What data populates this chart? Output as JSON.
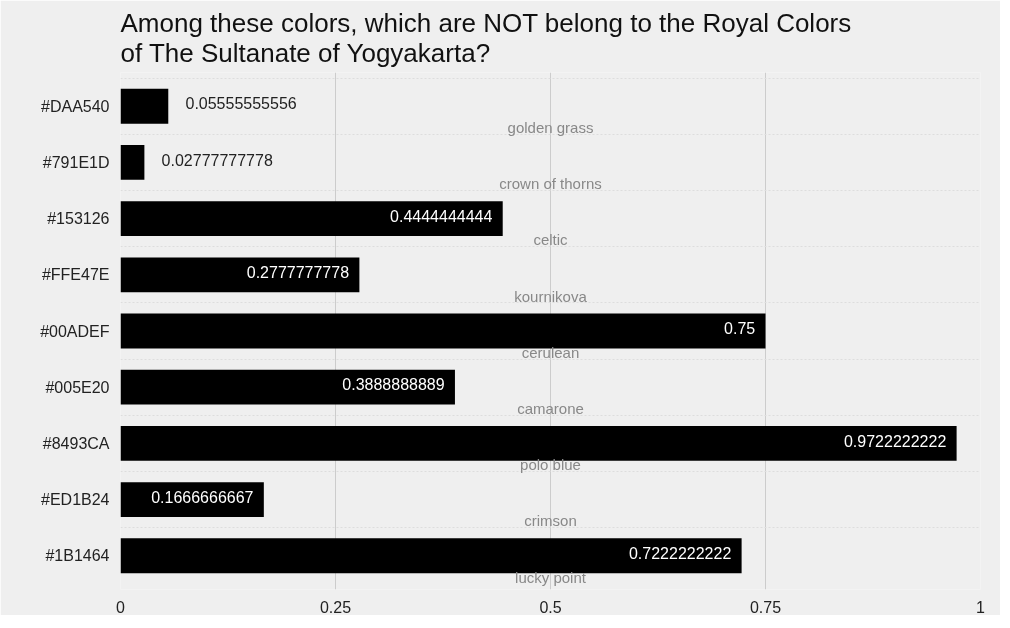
{
  "chart_data": {
    "type": "bar",
    "orientation": "horizontal",
    "title": "Among these colors, which are NOT belong to the Royal Colors\nof The Sultanate of Yogyakarta?",
    "categories": [
      "#DAA540",
      "#791E1D",
      "#153126",
      "#FFE47E",
      "#00ADEF",
      "#005E20",
      "#8493CA",
      "#ED1B24",
      "#1B1464"
    ],
    "values": [
      0.05555555556,
      0.02777777778,
      0.4444444444,
      0.2777777778,
      0.75,
      0.3888888889,
      0.9722222222,
      0.1666666667,
      0.7222222222
    ],
    "color": "#000000",
    "data_labels": true,
    "xlim": [
      0,
      1
    ],
    "xticks": [
      0,
      0.25,
      0.5,
      0.75,
      1
    ],
    "grid": true,
    "annotations": [
      "golden grass",
      "crown of thorns",
      "celtic",
      "kournikova",
      "cerulean",
      "camarone",
      "polo blue",
      "crimson",
      "lucky point"
    ]
  }
}
